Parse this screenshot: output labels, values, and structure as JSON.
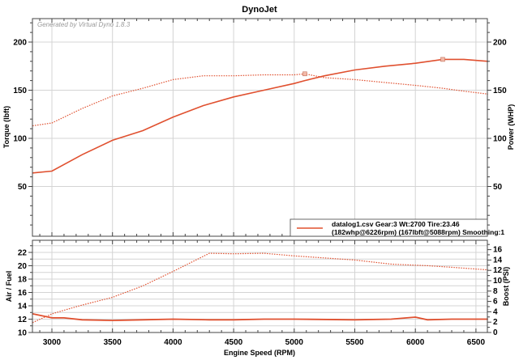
{
  "title": "DynoJet",
  "watermark": "Generated by Virtual Dyno 1.8.3",
  "colors": {
    "series": "#e0502f",
    "grid": "#d4d4d4",
    "frame": "#444444"
  },
  "legend": {
    "line1": "datalog1.csv Gear:3 Wt:2700 Tire:23.46",
    "line2": "(182whp@6226rpm) (167lbft@5088rpm) Smoothing:1"
  },
  "upper": {
    "left_label": "Torque (lbft)",
    "right_label": "Power (WHP)",
    "left_ticks": [
      "200",
      "150",
      "100",
      "50"
    ],
    "right_ticks": [
      "200",
      "150",
      "100",
      "50"
    ]
  },
  "lower": {
    "left_label": "Air / Fuel",
    "right_label": "Boost (PSI)",
    "left_ticks": [
      "22",
      "20",
      "18",
      "16",
      "14",
      "12",
      "10"
    ],
    "right_ticks": [
      "16",
      "14",
      "12",
      "10",
      "8",
      "6",
      "4",
      "2",
      "0"
    ]
  },
  "xaxis": {
    "label": "Engine Speed (RPM)",
    "ticks": [
      "3000",
      "3500",
      "4000",
      "4500",
      "5000",
      "5500",
      "6000",
      "6500"
    ]
  },
  "chart_data": [
    {
      "type": "line",
      "title": "DynoJet",
      "xlabel": "Engine Speed (RPM)",
      "ylabel": "Torque (lbft)",
      "y2label": "Power (WHP)",
      "xlim": [
        2840,
        6600
      ],
      "ylim": [
        0,
        225
      ],
      "grid": true,
      "legend_position": "bottom-right",
      "x": [
        2840,
        3000,
        3250,
        3500,
        3750,
        4000,
        4250,
        4500,
        4750,
        5000,
        5088,
        5250,
        5500,
        5750,
        6000,
        6226,
        6400,
        6600
      ],
      "series": [
        {
          "name": "Torque (lbft)",
          "style": "dotted",
          "values": [
            113,
            116,
            131,
            144,
            152,
            161,
            165,
            165,
            166,
            166,
            167,
            163,
            161,
            158,
            155,
            152,
            149,
            146
          ]
        },
        {
          "name": "Power (WHP)",
          "style": "solid",
          "values": [
            64,
            66,
            83,
            98,
            108,
            122,
            134,
            143,
            150,
            157,
            160,
            165,
            171,
            175,
            178,
            182,
            182,
            180
          ]
        }
      ],
      "annotations": [
        "182whp@6226rpm",
        "167lbft@5088rpm"
      ]
    },
    {
      "type": "line",
      "xlabel": "Engine Speed (RPM)",
      "ylabel": "Air / Fuel",
      "y2label": "Boost (PSI)",
      "xlim": [
        2840,
        6600
      ],
      "ylim": [
        10,
        23.8
      ],
      "y2lim": [
        0,
        17.8
      ],
      "grid": true,
      "x": [
        2840,
        3000,
        3100,
        3250,
        3500,
        3750,
        4000,
        4300,
        4500,
        4750,
        5000,
        5500,
        5800,
        6000,
        6100,
        6300,
        6600
      ],
      "series": [
        {
          "name": "Air / Fuel",
          "style": "solid",
          "axis": "left",
          "values": [
            12.8,
            12.2,
            12.2,
            11.9,
            11.8,
            11.9,
            12.0,
            11.9,
            11.9,
            12.0,
            12.0,
            11.9,
            12.0,
            12.3,
            11.9,
            12.0,
            12.0
          ]
        },
        {
          "name": "Boost (PSI)",
          "style": "dotted",
          "axis": "right",
          "values": [
            1.9,
            3.6,
            4.3,
            5.3,
            6.8,
            9.0,
            11.8,
            15.3,
            15.2,
            15.3,
            14.8,
            14.0,
            13.2,
            13.0,
            12.9,
            12.6,
            12.1
          ]
        }
      ]
    }
  ]
}
